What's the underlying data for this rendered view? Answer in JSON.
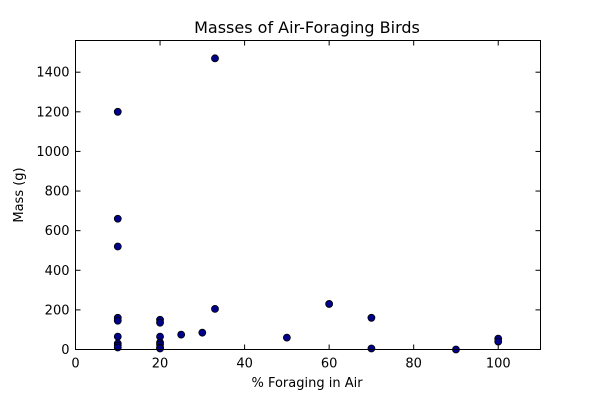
{
  "chart_data": {
    "type": "scatter",
    "title": "Masses of Air-Foraging Birds",
    "xlabel": "% Foraging in Air",
    "ylabel": "Mass (g)",
    "xlim": [
      0,
      110
    ],
    "ylim": [
      0,
      1560
    ],
    "xticks": [
      0,
      20,
      40,
      60,
      80,
      100
    ],
    "yticks": [
      0,
      200,
      400,
      600,
      800,
      1000,
      1200,
      1400
    ],
    "grid": false,
    "legend": "none",
    "marker_color": "#00008b",
    "points": [
      {
        "x": 10,
        "y": 1200
      },
      {
        "x": 10,
        "y": 660
      },
      {
        "x": 10,
        "y": 520
      },
      {
        "x": 10,
        "y": 160
      },
      {
        "x": 10,
        "y": 145
      },
      {
        "x": 10,
        "y": 65
      },
      {
        "x": 10,
        "y": 30
      },
      {
        "x": 10,
        "y": 20
      },
      {
        "x": 10,
        "y": 10
      },
      {
        "x": 20,
        "y": 150
      },
      {
        "x": 20,
        "y": 135
      },
      {
        "x": 20,
        "y": 65
      },
      {
        "x": 20,
        "y": 35
      },
      {
        "x": 20,
        "y": 25
      },
      {
        "x": 20,
        "y": 10
      },
      {
        "x": 20,
        "y": 5
      },
      {
        "x": 25,
        "y": 75
      },
      {
        "x": 30,
        "y": 85
      },
      {
        "x": 33,
        "y": 1470
      },
      {
        "x": 33,
        "y": 205
      },
      {
        "x": 50,
        "y": 60
      },
      {
        "x": 60,
        "y": 230
      },
      {
        "x": 70,
        "y": 160
      },
      {
        "x": 70,
        "y": 5
      },
      {
        "x": 90,
        "y": 0
      },
      {
        "x": 100,
        "y": 55
      },
      {
        "x": 100,
        "y": 40
      }
    ]
  }
}
